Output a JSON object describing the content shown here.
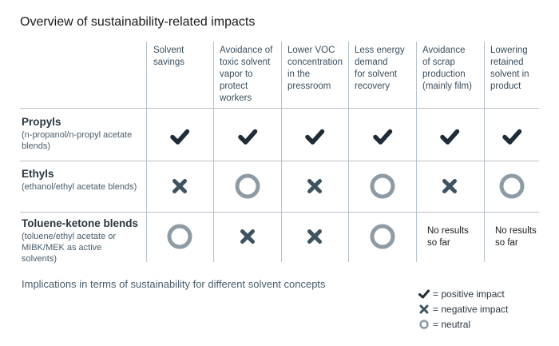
{
  "title": "Overview of sustainability-related impacts",
  "columns": [
    "Solvent\nsavings",
    "Avoidance of\ntoxic solvent\nvapor to\nprotect\nworkers",
    "Lower VOC\nconcentration\nin the\npressroom",
    "Less energy\ndemand\nfor solvent\nrecovery",
    "Avoidance\nof  scrap\nproduction\n(mainly film)",
    "Lowering\nretained\nsolvent in\nproduct"
  ],
  "rows": [
    {
      "name": "Propyls",
      "sub": "(n-propanol/n-propyl acetate\nblends)",
      "cells": [
        "positive",
        "positive",
        "positive",
        "positive",
        "positive",
        "positive"
      ]
    },
    {
      "name": "Ethyls",
      "sub": "(ethanol/ethyl acetate blends)",
      "cells": [
        "negative",
        "neutral",
        "negative",
        "neutral",
        "negative",
        "neutral"
      ]
    },
    {
      "name": "Toluene-ketone blends",
      "sub": "(toluene/ethyl acetate or\nMIBK/MEK as active\nsolvents)",
      "cells": [
        "neutral",
        "negative",
        "negative",
        "neutral",
        "No results\nso far",
        "No results\nso far"
      ]
    }
  ],
  "caption": "Implications in terms of sustainability for different solvent concepts",
  "legend": {
    "positive": "= positive impact",
    "negative": "= negative impact",
    "neutral": "= neutral"
  },
  "colors": {
    "check": "#1f2b36",
    "cross": "#3f5260",
    "circle": "#8e9ba4"
  }
}
